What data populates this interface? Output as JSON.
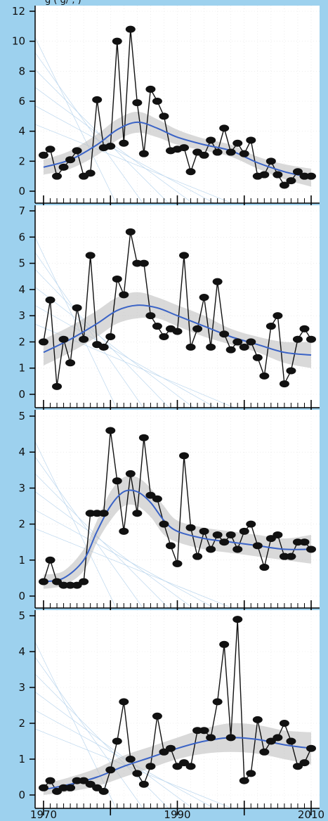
{
  "header_text": "g                               ( g/ ,          )",
  "colors": {
    "page_background": "#9dd1ee",
    "panel_background": "#ffffff",
    "smooth_line": "#3a63c6",
    "confidence_band": "#b9b9b9",
    "data_line": "#111111",
    "point": "#111111"
  },
  "chart_data": [
    {
      "type": "line",
      "panel": 1,
      "ylim": [
        0,
        12
      ],
      "yticks": [
        0,
        2,
        4,
        6,
        8,
        10,
        12
      ],
      "x": [
        1970,
        1971,
        1972,
        1973,
        1974,
        1975,
        1976,
        1977,
        1978,
        1979,
        1980,
        1981,
        1982,
        1983,
        1984,
        1985,
        1986,
        1987,
        1988,
        1989,
        1990,
        1991,
        1992,
        1993,
        1994,
        1995,
        1996,
        1997,
        1998,
        1999,
        2000,
        2001,
        2002,
        2003,
        2004,
        2005,
        2006,
        2007,
        2008,
        2009,
        2010
      ],
      "series": [
        {
          "values": [
            2.4,
            2.8,
            1.0,
            1.6,
            2.1,
            2.7,
            1.0,
            1.2,
            6.1,
            2.9,
            3.0,
            10.0,
            3.2,
            10.8,
            5.9,
            2.5,
            6.8,
            6.0,
            5.0,
            2.7,
            2.8,
            2.9,
            1.3,
            2.6,
            2.4,
            3.4,
            2.6,
            4.2,
            2.6,
            3.2,
            2.5,
            3.4,
            1.0,
            1.1,
            2.0,
            1.1,
            0.4,
            0.7,
            1.3,
            1.0,
            1.0
          ]
        }
      ],
      "smooth": {
        "x": [
          1970,
          1974,
          1978,
          1981,
          1984,
          1987,
          1990,
          1994,
          1998,
          2002,
          2006,
          2010
        ],
        "y": [
          1.6,
          2.1,
          3.1,
          4.1,
          4.6,
          4.2,
          3.6,
          3.1,
          2.7,
          1.9,
          1.3,
          0.9
        ],
        "band_halfwidth": [
          0.5,
          0.6,
          0.7,
          0.7,
          0.7,
          0.6,
          0.5,
          0.4,
          0.4,
          0.4,
          0.5,
          0.6
        ]
      }
    },
    {
      "type": "line",
      "panel": 2,
      "ylim": [
        0,
        7
      ],
      "yticks": [
        0,
        1,
        2,
        3,
        4,
        5,
        6,
        7
      ],
      "x": [
        1970,
        1971,
        1972,
        1973,
        1974,
        1975,
        1976,
        1977,
        1978,
        1979,
        1980,
        1981,
        1982,
        1983,
        1984,
        1985,
        1986,
        1987,
        1988,
        1989,
        1990,
        1991,
        1992,
        1993,
        1994,
        1995,
        1996,
        1997,
        1998,
        1999,
        2000,
        2001,
        2002,
        2003,
        2004,
        2005,
        2006,
        2007,
        2008,
        2009,
        2010
      ],
      "series": [
        {
          "values": [
            2.0,
            3.6,
            0.3,
            2.1,
            1.2,
            3.3,
            2.1,
            5.3,
            1.9,
            1.8,
            2.2,
            4.4,
            3.8,
            6.2,
            5.0,
            5.0,
            3.0,
            2.6,
            2.2,
            2.5,
            2.4,
            5.3,
            1.8,
            2.5,
            3.7,
            1.8,
            4.3,
            2.3,
            1.7,
            2.0,
            1.8,
            2.0,
            1.4,
            0.7,
            2.6,
            3.0,
            0.4,
            0.9,
            2.1,
            2.5,
            2.1
          ]
        }
      ],
      "smooth": {
        "x": [
          1970,
          1974,
          1978,
          1981,
          1984,
          1987,
          1990,
          1994,
          1998,
          2002,
          2006,
          2010
        ],
        "y": [
          1.6,
          2.1,
          2.7,
          3.2,
          3.4,
          3.3,
          3.0,
          2.6,
          2.2,
          1.9,
          1.6,
          1.5
        ],
        "band_halfwidth": [
          0.5,
          0.5,
          0.5,
          0.5,
          0.5,
          0.4,
          0.4,
          0.4,
          0.3,
          0.3,
          0.4,
          0.5
        ]
      }
    },
    {
      "type": "line",
      "panel": 3,
      "ylim": [
        0,
        5
      ],
      "yticks": [
        0,
        1,
        2,
        3,
        4,
        5
      ],
      "x": [
        1970,
        1971,
        1972,
        1973,
        1974,
        1975,
        1976,
        1977,
        1978,
        1979,
        1980,
        1981,
        1982,
        1983,
        1984,
        1985,
        1986,
        1987,
        1988,
        1989,
        1990,
        1991,
        1992,
        1993,
        1994,
        1995,
        1996,
        1997,
        1998,
        1999,
        2000,
        2001,
        2002,
        2003,
        2004,
        2005,
        2006,
        2007,
        2008,
        2009,
        2010
      ],
      "series": [
        {
          "values": [
            0.4,
            1.0,
            0.4,
            0.3,
            0.3,
            0.3,
            0.4,
            2.3,
            2.3,
            2.3,
            4.6,
            3.2,
            1.8,
            3.4,
            2.3,
            4.4,
            2.8,
            2.7,
            2.0,
            1.4,
            0.9,
            3.9,
            1.9,
            1.1,
            1.8,
            1.3,
            1.7,
            1.5,
            1.7,
            1.3,
            1.8,
            2.0,
            1.4,
            0.8,
            1.6,
            1.7,
            1.1,
            1.1,
            1.5,
            1.5,
            1.3
          ]
        }
      ],
      "smooth": {
        "x": [
          1970,
          1973,
          1976,
          1978,
          1980,
          1982,
          1984,
          1986,
          1988,
          1990,
          1994,
          1998,
          2002,
          2006,
          2010
        ],
        "y": [
          0.4,
          0.5,
          1.0,
          1.8,
          2.5,
          2.9,
          2.9,
          2.6,
          2.1,
          1.8,
          1.6,
          1.5,
          1.4,
          1.3,
          1.3
        ],
        "band_halfwidth": [
          0.2,
          0.2,
          0.3,
          0.3,
          0.4,
          0.4,
          0.4,
          0.4,
          0.4,
          0.3,
          0.3,
          0.3,
          0.3,
          0.3,
          0.4
        ]
      }
    },
    {
      "type": "line",
      "panel": 4,
      "ylim": [
        0,
        5
      ],
      "yticks": [
        0,
        1,
        2,
        3,
        4,
        5
      ],
      "xticks": [
        1970,
        1990,
        2010
      ],
      "x": [
        1970,
        1971,
        1972,
        1973,
        1974,
        1975,
        1976,
        1977,
        1978,
        1979,
        1980,
        1981,
        1982,
        1983,
        1984,
        1985,
        1986,
        1987,
        1988,
        1989,
        1990,
        1991,
        1992,
        1993,
        1994,
        1995,
        1996,
        1997,
        1998,
        1999,
        2000,
        2001,
        2002,
        2003,
        2004,
        2005,
        2006,
        2007,
        2008,
        2009,
        2010
      ],
      "series": [
        {
          "values": [
            0.2,
            0.4,
            0.1,
            0.2,
            0.2,
            0.4,
            0.4,
            0.3,
            0.2,
            0.1,
            0.7,
            1.5,
            2.6,
            1.0,
            0.6,
            0.3,
            0.8,
            2.2,
            1.2,
            1.3,
            0.8,
            0.9,
            0.8,
            1.8,
            1.8,
            1.6,
            2.6,
            4.2,
            1.6,
            4.9,
            0.4,
            0.6,
            2.1,
            1.2,
            1.5,
            1.6,
            2.0,
            1.5,
            0.8,
            0.9,
            1.3
          ]
        }
      ],
      "smooth": {
        "x": [
          1970,
          1974,
          1978,
          1982,
          1986,
          1990,
          1994,
          1998,
          2002,
          2006,
          2010
        ],
        "y": [
          0.15,
          0.3,
          0.5,
          0.8,
          1.05,
          1.3,
          1.5,
          1.6,
          1.55,
          1.4,
          1.3
        ],
        "band_halfwidth": [
          0.15,
          0.2,
          0.25,
          0.3,
          0.3,
          0.3,
          0.35,
          0.4,
          0.4,
          0.4,
          0.45
        ]
      }
    }
  ]
}
